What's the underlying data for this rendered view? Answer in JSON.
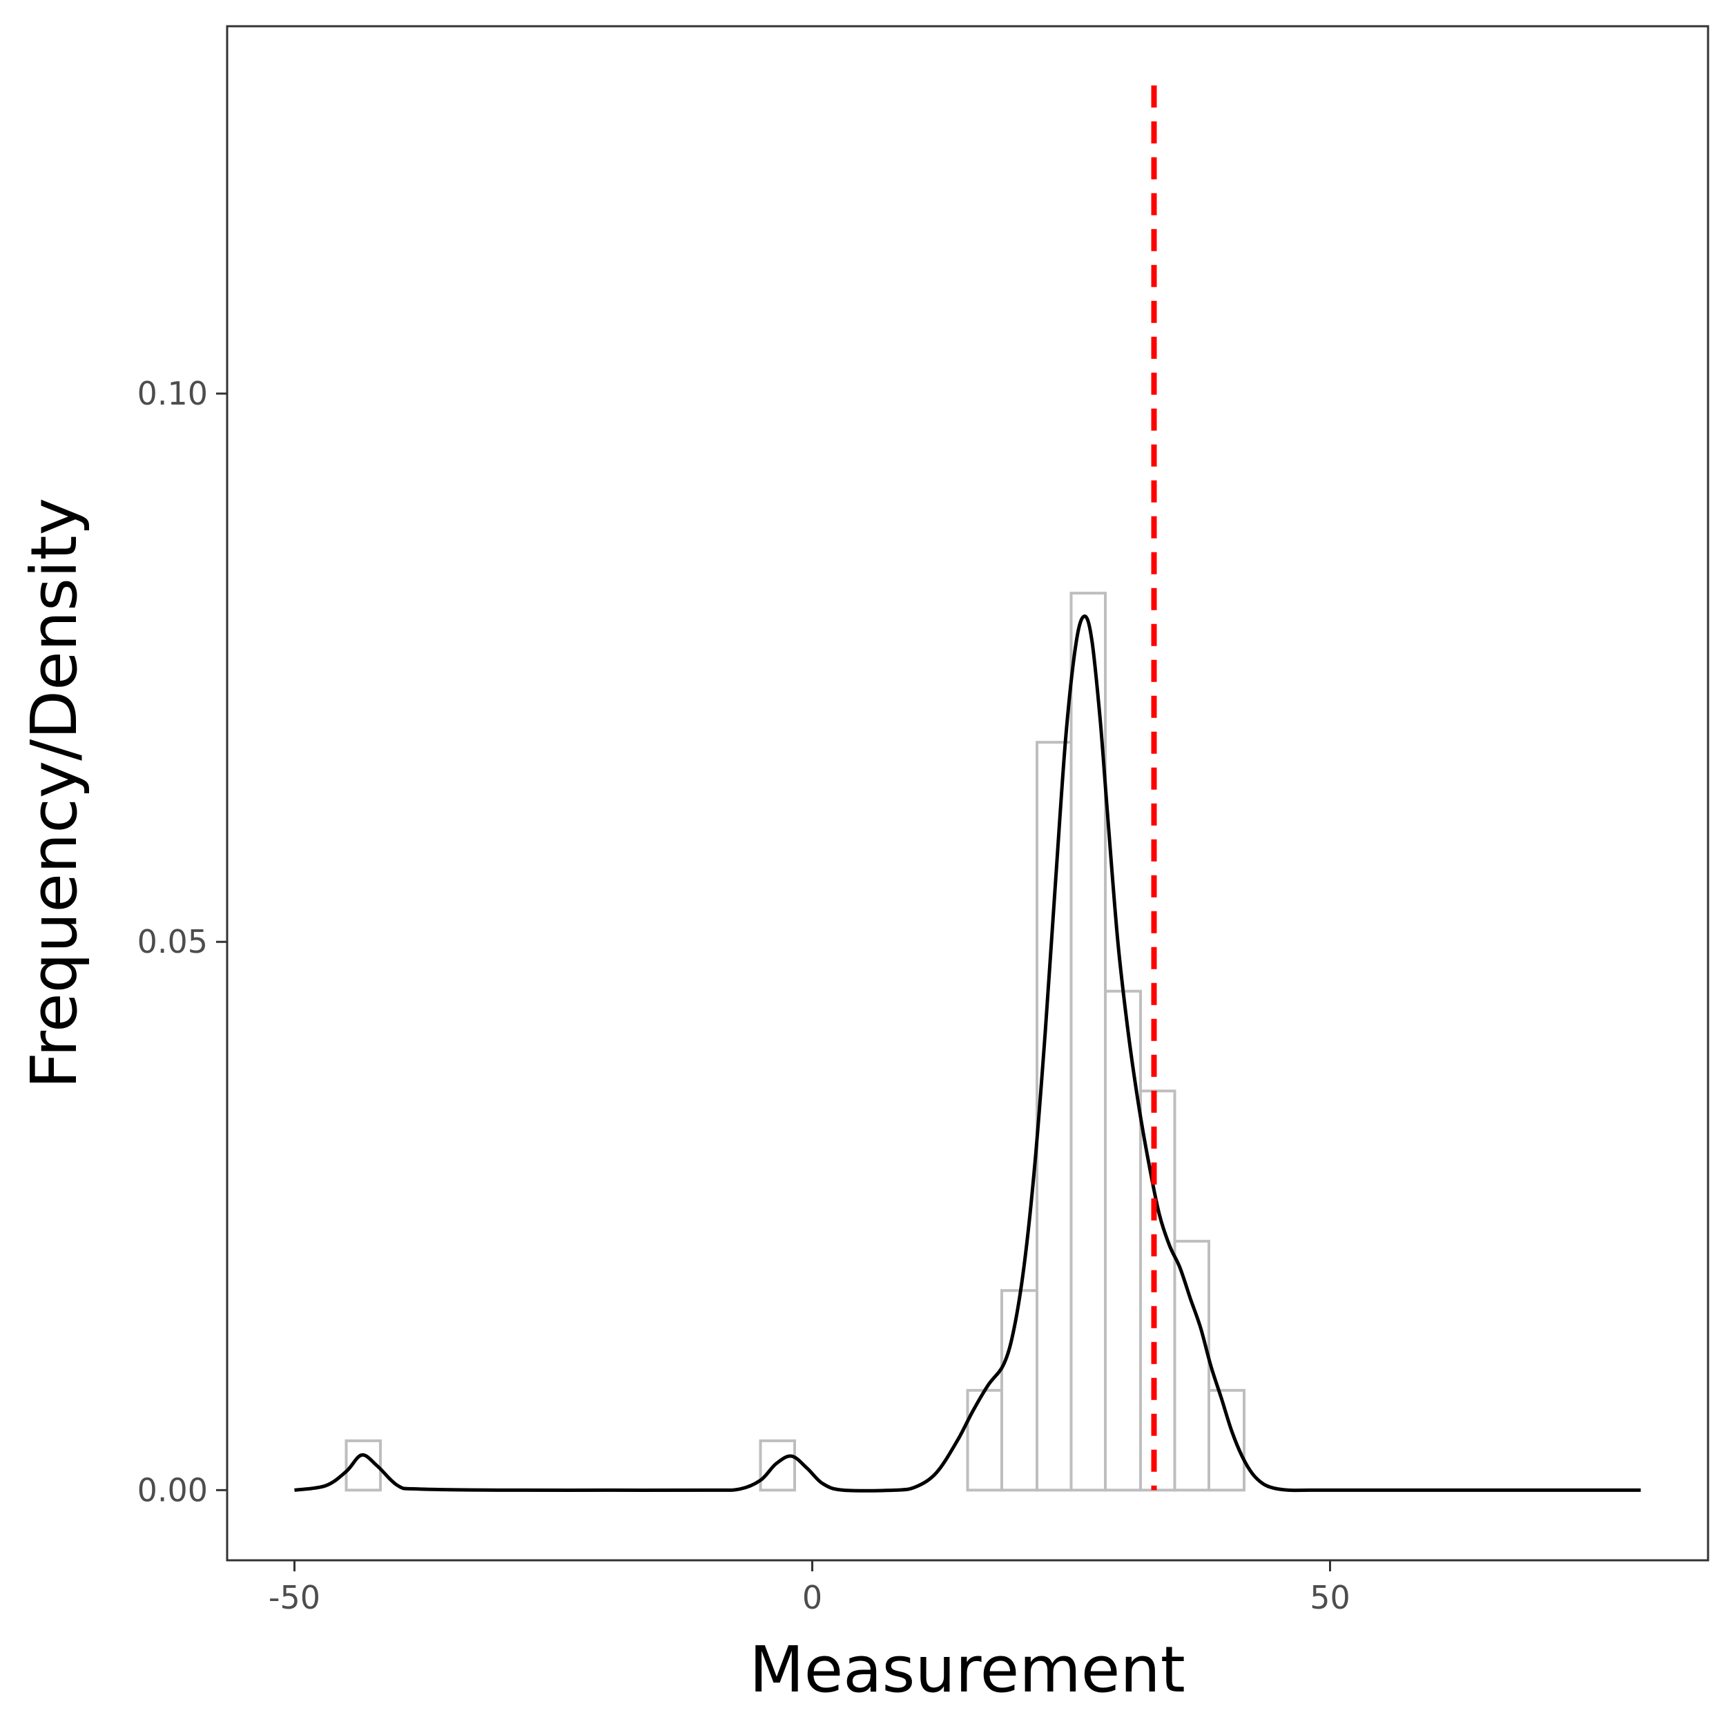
{
  "chart_data": {
    "type": "bar",
    "title": "",
    "xlabel": "Measurement",
    "ylabel": "Frequency/Density",
    "xlim": [
      -56.5,
      86.5
    ],
    "ylim": [
      -0.0064,
      0.1335
    ],
    "x_ticks": [
      {
        "value": -50,
        "label": "-50"
      },
      {
        "value": 0,
        "label": "0"
      },
      {
        "value": 50,
        "label": "50"
      }
    ],
    "y_ticks": [
      {
        "value": 0.0,
        "label": "0.00"
      },
      {
        "value": 0.05,
        "label": "0.05"
      },
      {
        "value": 0.1,
        "label": "0.10"
      }
    ],
    "grid": false,
    "histogram": {
      "bin_width": 3.33,
      "outline_color": "#bebebe",
      "bins": [
        {
          "start": -45.0,
          "end": -41.7,
          "density": 0.0045
        },
        {
          "start": -5.0,
          "end": -1.7,
          "density": 0.0045
        },
        {
          "start": 15.0,
          "end": 18.3,
          "density": 0.0091
        },
        {
          "start": 18.3,
          "end": 21.7,
          "density": 0.0182
        },
        {
          "start": 21.7,
          "end": 25.0,
          "density": 0.0682
        },
        {
          "start": 25.0,
          "end": 28.3,
          "density": 0.0818
        },
        {
          "start": 28.3,
          "end": 31.7,
          "density": 0.0455
        },
        {
          "start": 31.7,
          "end": 35.0,
          "density": 0.0364
        },
        {
          "start": 35.0,
          "end": 38.3,
          "density": 0.0227
        },
        {
          "start": 38.3,
          "end": 41.7,
          "density": 0.0091
        }
      ]
    },
    "density_curve": {
      "color": "#000000",
      "x": [
        -50,
        -47,
        -45,
        -43.5,
        -42,
        -40,
        -38,
        -30,
        -20,
        -10,
        -7,
        -5,
        -3.5,
        -2,
        -0.5,
        1,
        3,
        8,
        10,
        12,
        14,
        15.5,
        17,
        18.5,
        19.5,
        20.5,
        21.5,
        22.5,
        23.5,
        24.5,
        25.5,
        26.3,
        27,
        27.8,
        28.5,
        29.5,
        30.5,
        31.5,
        32.5,
        33.5,
        34.5,
        35.5,
        36.5,
        37.5,
        38.5,
        39.5,
        40.5,
        41.5,
        42.5,
        43.5,
        44.5,
        46,
        48,
        55,
        65,
        75,
        80
      ],
      "y": [
        0.0,
        0.0004,
        0.0017,
        0.0032,
        0.0022,
        0.0004,
        0.0001,
        0.0,
        0.0,
        0.0,
        0.0001,
        0.0009,
        0.0024,
        0.0031,
        0.002,
        0.0006,
        0.0,
        0.0,
        0.0003,
        0.0016,
        0.0045,
        0.0072,
        0.0096,
        0.0115,
        0.0148,
        0.0208,
        0.0298,
        0.0418,
        0.0556,
        0.0689,
        0.0774,
        0.0797,
        0.0775,
        0.0703,
        0.0618,
        0.0501,
        0.0418,
        0.0352,
        0.0298,
        0.0252,
        0.0223,
        0.0203,
        0.0175,
        0.0148,
        0.0113,
        0.0084,
        0.0054,
        0.0031,
        0.0015,
        0.0006,
        0.0002,
        0.0,
        0.0,
        0.0,
        0.0,
        0.0,
        0.0
      ]
    },
    "reference_line": {
      "x": 33.0,
      "y_top": 0.1281,
      "style": "dashed",
      "color": "#ff0000"
    }
  }
}
